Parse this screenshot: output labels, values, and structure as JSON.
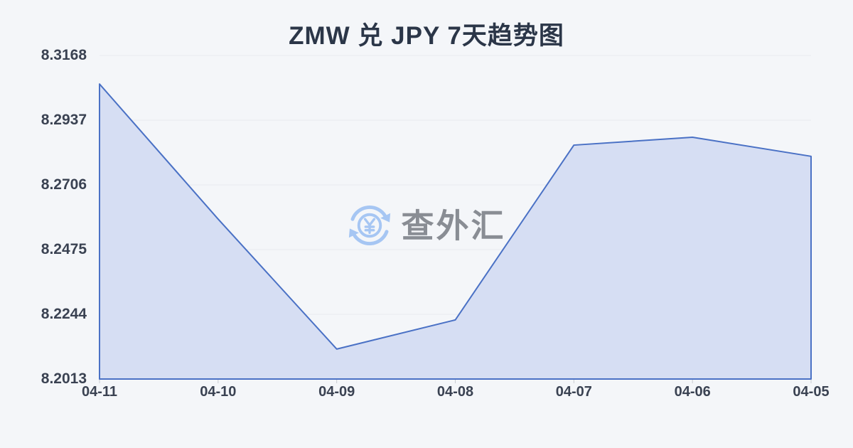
{
  "page": {
    "background": "#f4f6f9"
  },
  "watermark": {
    "text": "查外汇",
    "icon": "currency-exchange-icon",
    "text_color": "#898d94",
    "icon_color": "#a6c6f3"
  },
  "chart_data": {
    "type": "area",
    "title": "ZMW 兑 JPY 7天趋势图",
    "categories": [
      "04-11",
      "04-10",
      "04-09",
      "04-08",
      "04-07",
      "04-06",
      "04-05"
    ],
    "values": [
      8.3066,
      8.2584,
      8.212,
      8.2224,
      8.2848,
      8.2876,
      8.2808
    ],
    "y_ticks": [
      8.3168,
      8.2937,
      8.2706,
      8.2475,
      8.2244,
      8.2013
    ],
    "ylim": [
      8.2013,
      8.3168
    ],
    "xlabel": "",
    "ylabel": "",
    "grid": true,
    "legend": "none",
    "colors": {
      "line": "#4a71c5",
      "fill": "#d6def3",
      "grid": "#e7eaee",
      "tick": "#c9ccd2",
      "axis_label": "#3a4252",
      "title": "#2b3648"
    }
  }
}
